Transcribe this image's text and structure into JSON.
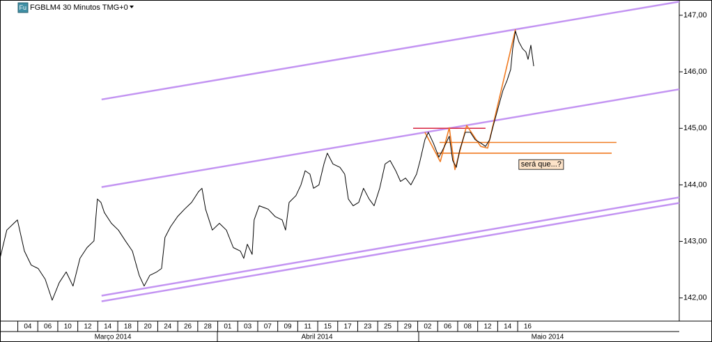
{
  "chart_data": {
    "type": "line",
    "title": "FGBLM4 30 Minutos TMG+0",
    "icon": "Fu",
    "xlim": [
      -1.39,
      32.58
    ],
    "ylim": [
      141.59,
      147.27
    ],
    "xticks": [
      {
        "value": 0,
        "label": "04"
      },
      {
        "value": 1,
        "label": "06"
      },
      {
        "value": 2,
        "label": "10"
      },
      {
        "value": 3,
        "label": "12"
      },
      {
        "value": 4,
        "label": "14"
      },
      {
        "value": 5,
        "label": "18"
      },
      {
        "value": 6,
        "label": "20"
      },
      {
        "value": 7,
        "label": "24"
      },
      {
        "value": 8,
        "label": "26"
      },
      {
        "value": 9,
        "label": "28"
      },
      {
        "value": 10,
        "label": "01"
      },
      {
        "value": 11,
        "label": "03"
      },
      {
        "value": 12,
        "label": "07"
      },
      {
        "value": 13,
        "label": "09"
      },
      {
        "value": 14,
        "label": "11"
      },
      {
        "value": 15,
        "label": "15"
      },
      {
        "value": 16,
        "label": "17"
      },
      {
        "value": 17,
        "label": "23"
      },
      {
        "value": 18,
        "label": "25"
      },
      {
        "value": 19,
        "label": "29"
      },
      {
        "value": 20,
        "label": "02"
      },
      {
        "value": 21,
        "label": "06"
      },
      {
        "value": 22,
        "label": "08"
      },
      {
        "value": 23,
        "label": "12"
      },
      {
        "value": 24,
        "label": "14"
      },
      {
        "value": 25,
        "label": "16"
      }
    ],
    "months": [
      "Março 2014",
      "Abril 2014",
      "Maio 2014"
    ],
    "yticks": [
      {
        "value": 142,
        "label": "142,00"
      },
      {
        "value": 143,
        "label": "143,00"
      },
      {
        "value": 144,
        "label": "144,00"
      },
      {
        "value": 145,
        "label": "145,00"
      },
      {
        "value": 146,
        "label": "146,00"
      },
      {
        "value": 147,
        "label": "147,00"
      }
    ],
    "price": {
      "color": "#000000",
      "x": [
        -1.39,
        -1.05,
        -0.7,
        -0.52,
        -0.17,
        0.17,
        0.52,
        0.87,
        1.22,
        1.57,
        1.92,
        2.26,
        2.61,
        2.96,
        3.31,
        3.48,
        3.66,
        3.83,
        4.18,
        4.53,
        4.88,
        5.23,
        5.57,
        5.82,
        6.1,
        6.45,
        6.69,
        6.86,
        7.14,
        7.49,
        7.84,
        8.19,
        8.54,
        8.71,
        8.89,
        9.23,
        9.58,
        9.93,
        10.28,
        10.63,
        10.8,
        10.98,
        11.22,
        11.32,
        11.57,
        12.02,
        12.37,
        12.72,
        12.89,
        13.07,
        13.41,
        13.66,
        13.87,
        14.11,
        14.29,
        14.56,
        14.81,
        14.98,
        15.26,
        15.61,
        15.85,
        16.03,
        16.27,
        16.55,
        16.79,
        17.07,
        17.32,
        17.6,
        17.87,
        18.12,
        18.4,
        18.64,
        18.89,
        19.16,
        19.44,
        19.62,
        19.86,
        20.03,
        20.28,
        20.56,
        20.84,
        21.08,
        21.25,
        21.43,
        21.6,
        21.88,
        22.13,
        22.37,
        22.65,
        22.89,
        23.1,
        23.28,
        23.52,
        23.76,
        23.97,
        24.15,
        24.25,
        24.39,
        24.56,
        24.74,
        24.91,
        25.02,
        25.16,
        25.3
      ],
      "values": [
        142.7,
        143.2,
        143.32,
        143.38,
        142.83,
        142.58,
        142.52,
        142.33,
        141.96,
        142.27,
        142.46,
        142.21,
        142.7,
        142.89,
        143.01,
        143.75,
        143.69,
        143.51,
        143.32,
        143.2,
        143.01,
        142.83,
        142.4,
        142.21,
        142.4,
        142.46,
        142.52,
        143.07,
        143.26,
        143.44,
        143.57,
        143.69,
        143.88,
        143.94,
        143.57,
        143.2,
        143.32,
        143.2,
        142.89,
        142.83,
        142.7,
        142.95,
        142.77,
        143.38,
        143.63,
        143.57,
        143.44,
        143.38,
        143.2,
        143.69,
        143.81,
        144.0,
        144.25,
        144.19,
        143.94,
        144.0,
        144.37,
        144.56,
        144.37,
        144.31,
        144.19,
        143.75,
        143.63,
        143.69,
        143.94,
        143.75,
        143.63,
        143.94,
        144.37,
        144.43,
        144.25,
        144.06,
        144.12,
        144.0,
        144.19,
        144.43,
        144.8,
        144.93,
        144.74,
        144.49,
        144.68,
        144.86,
        144.43,
        144.31,
        144.62,
        144.93,
        144.93,
        144.8,
        144.74,
        144.68,
        144.8,
        145.05,
        145.36,
        145.67,
        145.85,
        146.04,
        146.41,
        146.72,
        146.53,
        146.41,
        146.35,
        146.22,
        146.47,
        146.1
      ]
    },
    "lines": [
      {
        "color": "#c394f2",
        "x": [
          3.69,
          32.58
        ],
        "values": [
          145.51,
          147.24
        ]
      },
      {
        "color": "#c394f2",
        "x": [
          3.69,
          32.58
        ],
        "values": [
          143.96,
          145.69
        ]
      },
      {
        "color": "#c394f2",
        "x": [
          3.69,
          32.58
        ],
        "values": [
          142.04,
          143.78
        ]
      },
      {
        "color": "#c394f2",
        "x": [
          3.69,
          32.58
        ],
        "values": [
          141.94,
          143.68
        ]
      },
      {
        "color": "#d9304a",
        "x": [
          19.27,
          22.89
        ],
        "values": [
          145.0,
          145.0
        ]
      },
      {
        "color": "#f07a20",
        "x": [
          20.59,
          29.44
        ],
        "values": [
          144.75,
          144.75
        ]
      },
      {
        "color": "#f07a20",
        "x": [
          20.45,
          29.2
        ],
        "values": [
          144.56,
          144.56
        ]
      },
      {
        "color": "#f07a20",
        "x": [
          19.86,
          20.63,
          21.08,
          21.36,
          21.95,
          22.65,
          23.0,
          24.39
        ],
        "values": [
          144.93,
          144.41,
          145.01,
          144.27,
          145.05,
          144.68,
          144.65,
          146.75
        ]
      }
    ],
    "annotations": [
      {
        "text": "será que...?",
        "x": 24.56,
        "y": 144.36
      }
    ]
  }
}
